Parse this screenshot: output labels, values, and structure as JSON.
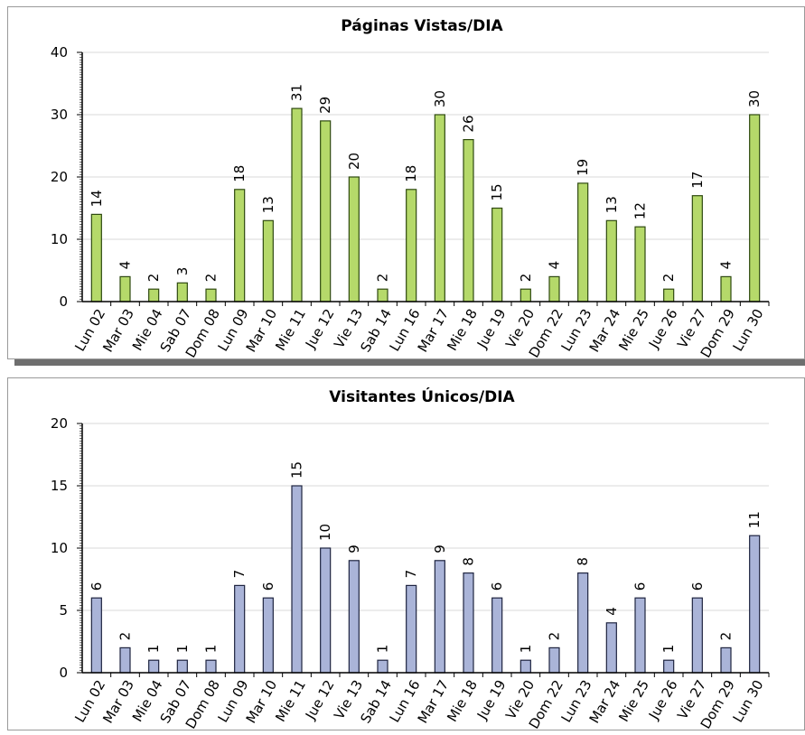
{
  "chart_data": [
    {
      "type": "bar",
      "title": "Páginas Vistas/DIA",
      "xlabel": "",
      "ylabel": "",
      "ylim": [
        0,
        40
      ],
      "yticks": [
        "0",
        "10",
        "20",
        "30",
        "40"
      ],
      "grid": true,
      "bar_color": "#b5d96a",
      "bar_stroke": "#2f4a10",
      "categories": [
        "Lun 02",
        "Mar 03",
        "Mie 04",
        "Sab 07",
        "Dom 08",
        "Lun 09",
        "Mar 10",
        "Mie 11",
        "Jue 12",
        "Vie 13",
        "Sab 14",
        "Lun 16",
        "Mar 17",
        "Mie 18",
        "Jue 19",
        "Vie 20",
        "Dom 22",
        "Lun 23",
        "Mar 24",
        "Mie 25",
        "Jue 26",
        "Vie 27",
        "Dom 29",
        "Lun 30"
      ],
      "values": [
        14,
        4,
        2,
        3,
        2,
        18,
        13,
        31,
        29,
        20,
        2,
        18,
        30,
        26,
        15,
        2,
        4,
        19,
        13,
        12,
        2,
        17,
        4,
        30
      ]
    },
    {
      "type": "bar",
      "title": "Visitantes Únicos/DIA",
      "xlabel": "",
      "ylabel": "",
      "ylim": [
        0,
        20
      ],
      "yticks": [
        "0",
        "5",
        "10",
        "15",
        "20"
      ],
      "grid": true,
      "bar_color": "#aab4d8",
      "bar_stroke": "#1e2440",
      "categories": [
        "Lun 02",
        "Mar 03",
        "Mie 04",
        "Sab 07",
        "Dom 08",
        "Lun 09",
        "Mar 10",
        "Mie 11",
        "Jue 12",
        "Vie 13",
        "Sab 14",
        "Lun 16",
        "Mar 17",
        "Mie 18",
        "Jue 19",
        "Vie 20",
        "Dom 22",
        "Lun 23",
        "Mar 24",
        "Mie 25",
        "Jue 26",
        "Vie 27",
        "Dom 29",
        "Lun 30"
      ],
      "values": [
        6,
        2,
        1,
        1,
        1,
        7,
        6,
        15,
        10,
        9,
        1,
        7,
        9,
        8,
        6,
        1,
        2,
        8,
        4,
        6,
        1,
        6,
        2,
        11
      ]
    }
  ]
}
